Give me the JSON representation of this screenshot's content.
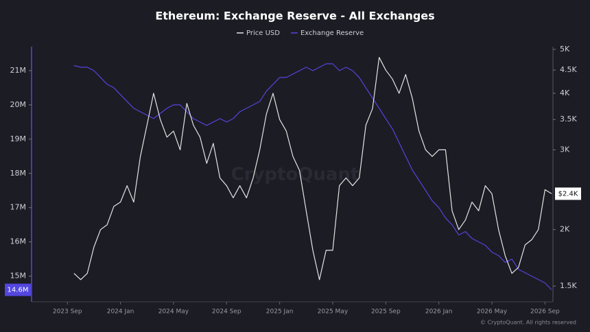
{
  "chart_data": {
    "type": "line",
    "title": "Ethereum: Exchange Reserve - All Exchanges",
    "watermark": "CryptoQuant",
    "footer": "© CryptoQuant. All rights reserved",
    "x": [
      0.5,
      1,
      1.5,
      2,
      2.5,
      3,
      3.5,
      4,
      4.5,
      5,
      5.5,
      6,
      6.5,
      7,
      7.5,
      8,
      8.5,
      9,
      9.5,
      10,
      10.5,
      11,
      11.5,
      12,
      12.5,
      13,
      13.5,
      14,
      14.5,
      15,
      15.5,
      16,
      16.5,
      17,
      17.5,
      18,
      18.5,
      19,
      19.5,
      20,
      20.5,
      21,
      21.5,
      22,
      22.5,
      23,
      23.5,
      24,
      24.5,
      25,
      25.5,
      26,
      26.5,
      27,
      27.5,
      28,
      28.5,
      29,
      29.5,
      30,
      30.5,
      31,
      31.5,
      32,
      32.5,
      33,
      33.5,
      34,
      34.5,
      35,
      35.5,
      36,
      36.5
    ],
    "xlim": [
      -2.7,
      36.6
    ],
    "xticks": [
      {
        "value": 0,
        "label": "2023 Sep"
      },
      {
        "value": 4,
        "label": "2024 Jan"
      },
      {
        "value": 8,
        "label": "2024 May"
      },
      {
        "value": 12,
        "label": "2024 Sep"
      },
      {
        "value": 16,
        "label": "2025 Jan"
      },
      {
        "value": 20,
        "label": "2025 May"
      },
      {
        "value": 24,
        "label": "2025 Sep"
      },
      {
        "value": 28,
        "label": "2026 Jan"
      },
      {
        "value": 32,
        "label": "2026 May"
      },
      {
        "value": 36,
        "label": "2026 Sep"
      }
    ],
    "ylim": [
      14.25,
      21.7
    ],
    "yticks": [
      {
        "value": 15,
        "label": "15M"
      },
      {
        "value": 16,
        "label": "16M"
      },
      {
        "value": 17,
        "label": "17M"
      },
      {
        "value": 18,
        "label": "18M"
      },
      {
        "value": 19,
        "label": "19M"
      },
      {
        "value": 20,
        "label": "20M"
      },
      {
        "value": 21,
        "label": "21M"
      }
    ],
    "y2lim": [
      1385,
      5070
    ],
    "y2scale": "log",
    "y2ticks": [
      {
        "value": 1500,
        "label": "1.5K"
      },
      {
        "value": 2000,
        "label": "2K"
      },
      {
        "value": 3000,
        "label": "3K"
      },
      {
        "value": 3500,
        "label": "3.5K"
      },
      {
        "value": 4000,
        "label": "4K"
      },
      {
        "value": 4500,
        "label": "4.5K"
      },
      {
        "value": 5000,
        "label": "5K"
      }
    ],
    "series": [
      {
        "name": "Price USD",
        "color": "#e6e6e6",
        "axis": "y2",
        "last_label": "$2.4K",
        "values": [
          1600,
          1550,
          1600,
          1830,
          2000,
          2050,
          2250,
          2300,
          2500,
          2300,
          2900,
          3400,
          4000,
          3500,
          3200,
          3300,
          3000,
          3800,
          3400,
          3200,
          2800,
          3100,
          2600,
          2500,
          2350,
          2500,
          2350,
          2600,
          3000,
          3600,
          4000,
          3500,
          3300,
          2900,
          2700,
          2200,
          1800,
          1550,
          1800,
          1800,
          2500,
          2600,
          2500,
          2600,
          3400,
          3700,
          4800,
          4500,
          4300,
          4000,
          4400,
          3900,
          3300,
          3000,
          2900,
          3000,
          3000,
          2200,
          2000,
          2100,
          2300,
          2200,
          2500,
          2400,
          2000,
          1750,
          1600,
          1650,
          1850,
          1900,
          2000,
          2450,
          2400
        ]
      },
      {
        "name": "Exchange Reserve",
        "color": "#5346e0",
        "axis": "y",
        "last_label": "14.6M",
        "values": [
          21.15,
          21.1,
          21.1,
          21.0,
          20.8,
          20.6,
          20.5,
          20.3,
          20.1,
          19.9,
          19.8,
          19.7,
          19.6,
          19.75,
          19.9,
          20.0,
          20.0,
          19.8,
          19.6,
          19.5,
          19.4,
          19.5,
          19.6,
          19.5,
          19.6,
          19.8,
          19.9,
          20.0,
          20.1,
          20.4,
          20.6,
          20.8,
          20.8,
          20.9,
          21.0,
          21.1,
          21.0,
          21.1,
          21.2,
          21.2,
          21.0,
          21.1,
          21.0,
          20.8,
          20.5,
          20.2,
          19.9,
          19.6,
          19.3,
          18.9,
          18.5,
          18.1,
          17.8,
          17.5,
          17.2,
          17.0,
          16.7,
          16.5,
          16.2,
          16.3,
          16.1,
          16.0,
          15.9,
          15.7,
          15.6,
          15.4,
          15.5,
          15.2,
          15.1,
          15.0,
          14.9,
          14.8,
          14.6
        ]
      }
    ]
  }
}
